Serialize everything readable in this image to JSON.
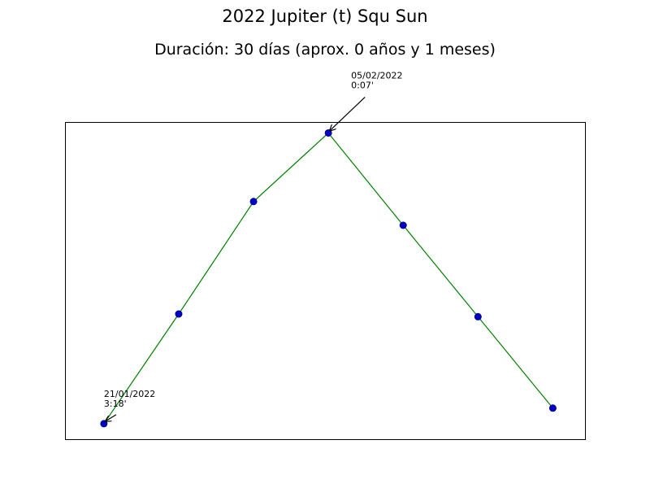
{
  "chart_data": {
    "type": "line",
    "title": "2022 Jupiter (t) Squ Sun",
    "subtitle": "Duración: 30 días (aprox. 0 años y 1 meses)",
    "x": [
      0,
      1,
      2,
      3,
      4,
      5,
      6
    ],
    "y": [
      3.3,
      2.1,
      0.87,
      0.12,
      1.13,
      2.13,
      3.13
    ],
    "y_inverted": true,
    "ylim": [
      3.47,
      0.0
    ],
    "xlim": [
      -0.52,
      6.43
    ],
    "grid": false,
    "line_color": "#008000",
    "marker_face_color": "#0000cc",
    "marker_edge_color": "#000080",
    "annotations": [
      {
        "index": 0,
        "line1": "21/01/2022",
        "line2": "3:18'"
      },
      {
        "index": 3,
        "line1": "05/02/2022",
        "line2": "0:07'"
      }
    ]
  }
}
